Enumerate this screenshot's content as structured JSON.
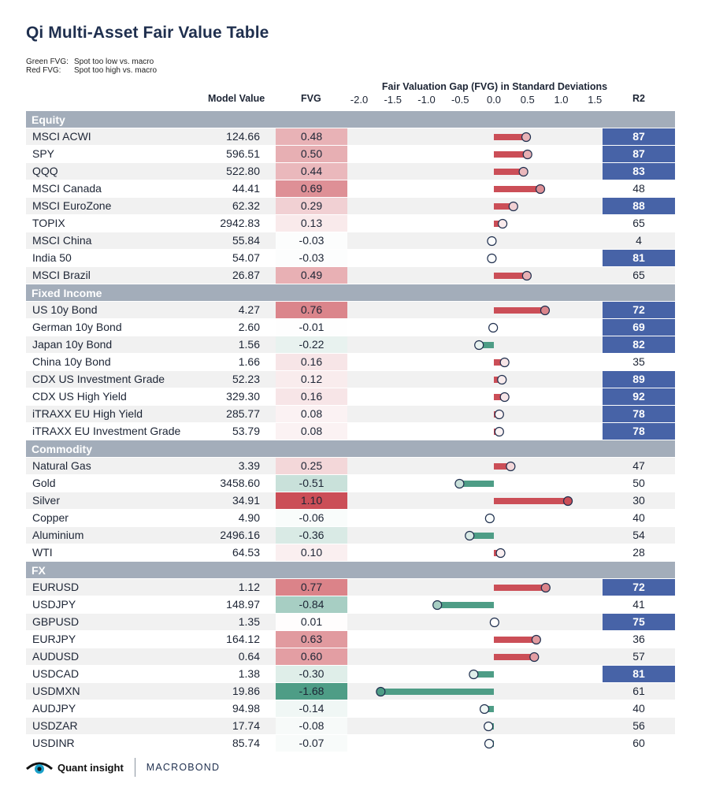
{
  "title": "Qi Multi-Asset Fair Value Table",
  "legend": {
    "green_key": "Green FVG:",
    "green_text": "Spot too low vs. macro",
    "red_key": "Red FVG:",
    "red_text": "Spot too high vs. macro"
  },
  "headers": {
    "model_value": "Model Value",
    "fvg": "FVG",
    "r2": "R2",
    "axis_title": "Fair Valuation Gap (FVG) in Standard Deviations"
  },
  "colors": {
    "red": "#cb4e57",
    "green": "#4e9d86",
    "r2_highlight": "#4763a7",
    "section": "#a3adba"
  },
  "chart_data": {
    "type": "bar",
    "title": "Fair Valuation Gap (FVG) in Standard Deviations",
    "xlim": [
      -2.0,
      1.5
    ],
    "ticks": [
      "-2.0",
      "-1.5",
      "-1.0",
      "-0.5",
      "0.0",
      "0.5",
      "1.0",
      "1.5"
    ],
    "tick_values": [
      -2.0,
      -1.5,
      -1.0,
      -0.5,
      0.0,
      0.5,
      1.0,
      1.5
    ],
    "sections": [
      {
        "name": "Equity",
        "rows": [
          {
            "name": "MSCI ACWI",
            "mv": "124.66",
            "fvg": "0.48",
            "r2": "87",
            "hi": true
          },
          {
            "name": "SPY",
            "mv": "596.51",
            "fvg": "0.50",
            "r2": "87",
            "hi": true
          },
          {
            "name": "QQQ",
            "mv": "522.80",
            "fvg": "0.44",
            "r2": "83",
            "hi": true
          },
          {
            "name": "MSCI Canada",
            "mv": "44.41",
            "fvg": "0.69",
            "r2": "48",
            "hi": false
          },
          {
            "name": "MSCI EuroZone",
            "mv": "62.32",
            "fvg": "0.29",
            "r2": "88",
            "hi": true
          },
          {
            "name": "TOPIX",
            "mv": "2942.83",
            "fvg": "0.13",
            "r2": "65",
            "hi": false
          },
          {
            "name": "MSCI China",
            "mv": "55.84",
            "fvg": "-0.03",
            "r2": "4",
            "hi": false
          },
          {
            "name": "India 50",
            "mv": "54.07",
            "fvg": "-0.03",
            "r2": "81",
            "hi": true
          },
          {
            "name": "MSCI Brazil",
            "mv": "26.87",
            "fvg": "0.49",
            "r2": "65",
            "hi": false
          }
        ]
      },
      {
        "name": "Fixed Income",
        "rows": [
          {
            "name": "US 10y Bond",
            "mv": "4.27",
            "fvg": "0.76",
            "r2": "72",
            "hi": true
          },
          {
            "name": "German 10y Bond",
            "mv": "2.60",
            "fvg": "-0.01",
            "r2": "69",
            "hi": true
          },
          {
            "name": "Japan 10y Bond",
            "mv": "1.56",
            "fvg": "-0.22",
            "r2": "82",
            "hi": true
          },
          {
            "name": "China 10y Bond",
            "mv": "1.66",
            "fvg": "0.16",
            "r2": "35",
            "hi": false
          },
          {
            "name": "CDX US Investment Grade",
            "mv": "52.23",
            "fvg": "0.12",
            "r2": "89",
            "hi": true
          },
          {
            "name": "CDX US High Yield",
            "mv": "329.30",
            "fvg": "0.16",
            "r2": "92",
            "hi": true
          },
          {
            "name": "iTRAXX EU High Yield",
            "mv": "285.77",
            "fvg": "0.08",
            "r2": "78",
            "hi": true
          },
          {
            "name": "iTRAXX EU Investment Grade",
            "mv": "53.79",
            "fvg": "0.08",
            "r2": "78",
            "hi": true
          }
        ]
      },
      {
        "name": "Commodity",
        "rows": [
          {
            "name": "Natural Gas",
            "mv": "3.39",
            "fvg": "0.25",
            "r2": "47",
            "hi": false
          },
          {
            "name": "Gold",
            "mv": "3458.60",
            "fvg": "-0.51",
            "r2": "50",
            "hi": false
          },
          {
            "name": "Silver",
            "mv": "34.91",
            "fvg": "1.10",
            "r2": "30",
            "hi": false
          },
          {
            "name": "Copper",
            "mv": "4.90",
            "fvg": "-0.06",
            "r2": "40",
            "hi": false
          },
          {
            "name": "Aluminium",
            "mv": "2496.16",
            "fvg": "-0.36",
            "r2": "54",
            "hi": false
          },
          {
            "name": "WTI",
            "mv": "64.53",
            "fvg": "0.10",
            "r2": "28",
            "hi": false
          }
        ]
      },
      {
        "name": "FX",
        "rows": [
          {
            "name": "EURUSD",
            "mv": "1.12",
            "fvg": "0.77",
            "r2": "72",
            "hi": true
          },
          {
            "name": "USDJPY",
            "mv": "148.97",
            "fvg": "-0.84",
            "r2": "41",
            "hi": false
          },
          {
            "name": "GBPUSD",
            "mv": "1.35",
            "fvg": "0.01",
            "r2": "75",
            "hi": true
          },
          {
            "name": "EURJPY",
            "mv": "164.12",
            "fvg": "0.63",
            "r2": "36",
            "hi": false
          },
          {
            "name": "AUDUSD",
            "mv": "0.64",
            "fvg": "0.60",
            "r2": "57",
            "hi": false
          },
          {
            "name": "USDCAD",
            "mv": "1.38",
            "fvg": "-0.30",
            "r2": "81",
            "hi": true
          },
          {
            "name": "USDMXN",
            "mv": "19.86",
            "fvg": "-1.68",
            "r2": "61",
            "hi": false
          },
          {
            "name": "AUDJPY",
            "mv": "94.98",
            "fvg": "-0.14",
            "r2": "40",
            "hi": false
          },
          {
            "name": "USDZAR",
            "mv": "17.74",
            "fvg": "-0.08",
            "r2": "56",
            "hi": false
          },
          {
            "name": "USDINR",
            "mv": "85.74",
            "fvg": "-0.07",
            "r2": "60",
            "hi": false
          }
        ]
      }
    ]
  },
  "footer": {
    "brand1": "Quant insight",
    "brand2": "MACROBOND"
  }
}
